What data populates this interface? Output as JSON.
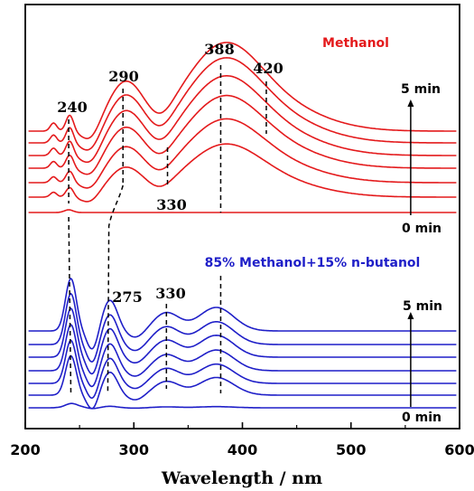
{
  "chart_data": {
    "type": "line",
    "xlabel": "Wavelength / nm",
    "xlim": [
      200,
      600
    ],
    "x_ticks": [
      200,
      300,
      400,
      500,
      600
    ],
    "x_tick_labels": [
      "200",
      "300",
      "400",
      "500",
      "600"
    ],
    "colors": {
      "top": "#e41a1c",
      "bottom": "#1f1fc8"
    },
    "panels": [
      {
        "label": "Methanol",
        "color_key": "top",
        "time_labels": {
          "end": "5 min",
          "start": "0 min"
        },
        "peak_labels": [
          "240",
          "290",
          "388",
          "420",
          "330"
        ],
        "peaks_nm": [
          240,
          290,
          388,
          420,
          330
        ],
        "series_count": 7
      },
      {
        "label": "85% Methanol+15% n-butanol",
        "color_key": "bottom",
        "time_labels": {
          "end": "5 min",
          "start": "0 min"
        },
        "peak_labels": [
          "275",
          "330"
        ],
        "peaks_nm": [
          242,
          275,
          330,
          380
        ],
        "series_count": 7
      }
    ]
  }
}
